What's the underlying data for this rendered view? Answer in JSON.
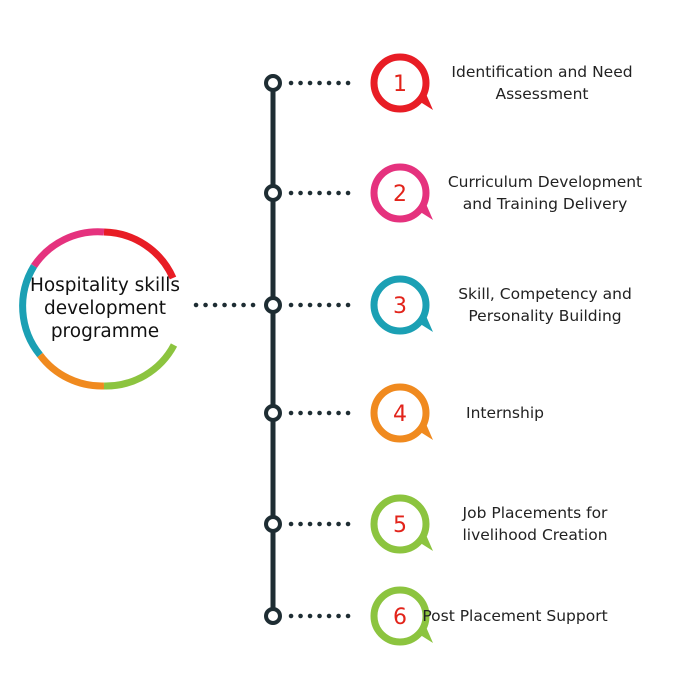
{
  "center": {
    "title": "Hospitality skills development programme"
  },
  "colors": {
    "line": "#1e2d33",
    "ring": [
      "#e81d25",
      "#e5327e",
      "#1ba0b4",
      "#f08a1f",
      "#8cc43f"
    ],
    "number_text": "#e2231a"
  },
  "steps": [
    {
      "number": "1",
      "label": "Identification and Need Assessment",
      "color": "#e81d25"
    },
    {
      "number": "2",
      "label": "Curriculum Development and Training Delivery",
      "color": "#e5327e"
    },
    {
      "number": "3",
      "label": "Skill, Competency and Personality Building",
      "color": "#1ba0b4"
    },
    {
      "number": "4",
      "label": "Internship",
      "color": "#f08a1f"
    },
    {
      "number": "5",
      "label": "Job Placements for livelihood Creation",
      "color": "#8cc43f"
    },
    {
      "number": "6",
      "label": "Post Placement Support",
      "color": "#8cc43f"
    }
  ]
}
